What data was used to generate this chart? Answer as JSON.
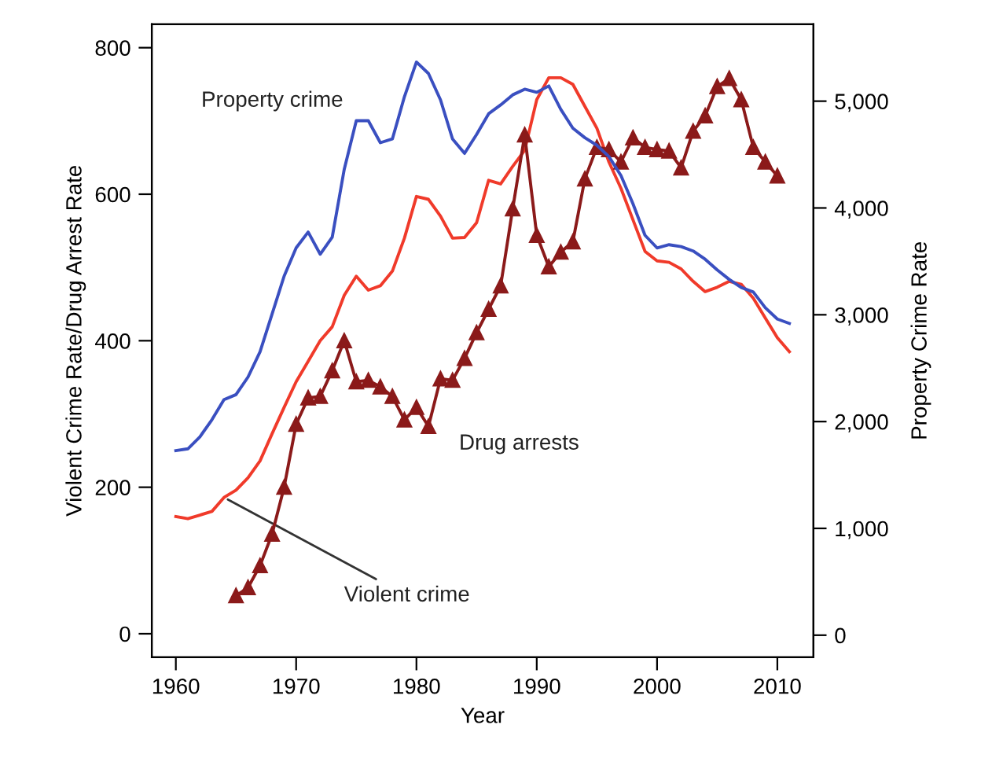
{
  "chart_data": {
    "type": "line",
    "xlabel": "Year",
    "ylabel": "Violent Crime Rate/Drug Arrest Rate",
    "y2label": "Property Crime Rate",
    "xlim": [
      1958,
      2013
    ],
    "xticks": [
      1960,
      1970,
      1980,
      1990,
      2000,
      2010
    ],
    "ylim": [
      -32,
      832
    ],
    "yticks": [
      0,
      200,
      400,
      600,
      800
    ],
    "y2lim": [
      -206,
      5720
    ],
    "y2ticks": [
      {
        "value": 0,
        "label": "0"
      },
      {
        "value": 1000,
        "label": "1,000"
      },
      {
        "value": 2000,
        "label": "2,000"
      },
      {
        "value": 3000,
        "label": "3,000"
      },
      {
        "value": 4000,
        "label": "4,000"
      },
      {
        "value": 5000,
        "label": "5,000"
      }
    ],
    "grid": false,
    "legend": false,
    "series": [
      {
        "name": "Property crime",
        "color": "#3a4fc0",
        "axis": "y2",
        "marker": "none",
        "x": [
          1960,
          1961,
          1962,
          1963,
          1964,
          1965,
          1966,
          1967,
          1968,
          1969,
          1970,
          1971,
          1972,
          1973,
          1974,
          1975,
          1976,
          1977,
          1978,
          1979,
          1980,
          1981,
          1982,
          1983,
          1984,
          1985,
          1986,
          1987,
          1988,
          1989,
          1990,
          1991,
          1992,
          1993,
          1994,
          1995,
          1996,
          1997,
          1998,
          1999,
          2000,
          2001,
          2002,
          2003,
          2004,
          2005,
          2006,
          2007,
          2008,
          2009,
          2010,
          2011
        ],
        "values": [
          1728,
          1745,
          1857,
          2017,
          2205,
          2252,
          2417,
          2653,
          3007,
          3361,
          3626,
          3774,
          3567,
          3726,
          4363,
          4817,
          4817,
          4611,
          4646,
          5041,
          5366,
          5259,
          5012,
          4646,
          4511,
          4688,
          4882,
          4965,
          5059,
          5112,
          5083,
          5142,
          4923,
          4747,
          4658,
          4587,
          4481,
          4304,
          4039,
          3744,
          3626,
          3656,
          3638,
          3597,
          3520,
          3420,
          3331,
          3255,
          3213,
          3066,
          2960,
          2919
        ]
      },
      {
        "name": "Violent crime",
        "color": "#f03a2a",
        "marker": "none",
        "x": [
          1960,
          1961,
          1962,
          1963,
          1964,
          1965,
          1966,
          1967,
          1968,
          1969,
          1970,
          1971,
          1972,
          1973,
          1974,
          1975,
          1976,
          1977,
          1978,
          1979,
          1980,
          1981,
          1982,
          1983,
          1984,
          1985,
          1986,
          1987,
          1988,
          1989,
          1990,
          1991,
          1992,
          1993,
          1994,
          1995,
          1996,
          1997,
          1998,
          1999,
          2000,
          2001,
          2002,
          2003,
          2004,
          2005,
          2006,
          2007,
          2008,
          2009,
          2010,
          2011
        ],
        "values": [
          160,
          157,
          162,
          167,
          186,
          196,
          213,
          236,
          273,
          309,
          344,
          372,
          400,
          419,
          462,
          488,
          469,
          475,
          495,
          540,
          597,
          593,
          570,
          540,
          541,
          561,
          619,
          614,
          638,
          660,
          729,
          759,
          759,
          750,
          720,
          690,
          644,
          608,
          565,
          522,
          509,
          507,
          498,
          481,
          467,
          473,
          481,
          477,
          458,
          431,
          404,
          385
        ]
      },
      {
        "name": "Drug arrests",
        "color": "#8b1a1a",
        "marker": "triangle",
        "x": [
          1965,
          1966,
          1967,
          1968,
          1969,
          1970,
          1971,
          1972,
          1973,
          1974,
          1975,
          1976,
          1977,
          1978,
          1979,
          1980,
          1981,
          1982,
          1983,
          1984,
          1985,
          1986,
          1987,
          1988,
          1989,
          1990,
          1991,
          1992,
          1993,
          1994,
          1995,
          1996,
          1997,
          1998,
          1999,
          2000,
          2001,
          2002,
          2003,
          2004,
          2005,
          2006,
          2007,
          2008,
          2009,
          2010
        ],
        "values": [
          52,
          63,
          93,
          136,
          200,
          286,
          322,
          324,
          359,
          400,
          344,
          346,
          337,
          324,
          292,
          309,
          283,
          348,
          346,
          376,
          411,
          443,
          475,
          580,
          681,
          544,
          501,
          521,
          535,
          621,
          664,
          661,
          644,
          677,
          664,
          661,
          659,
          636,
          686,
          707,
          747,
          758,
          729,
          664,
          644,
          625
        ]
      }
    ]
  }
}
